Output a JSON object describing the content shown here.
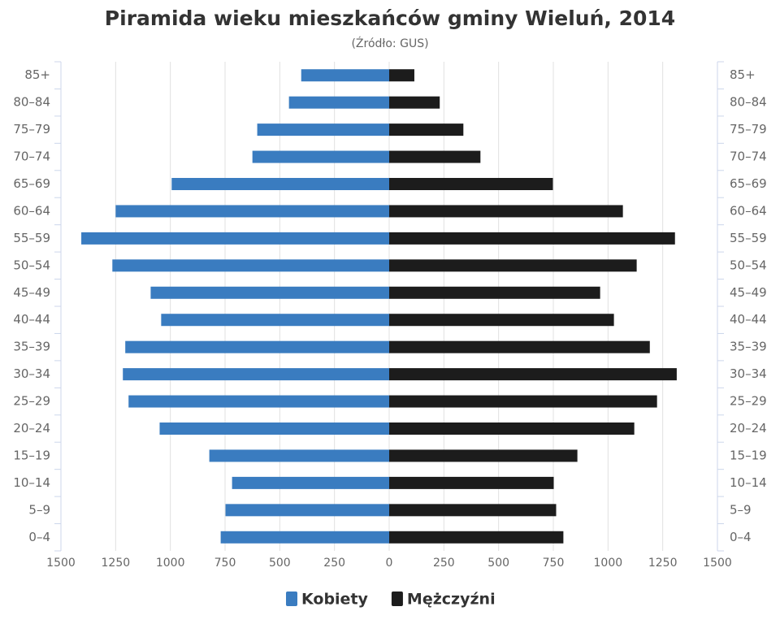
{
  "chart_data": {
    "type": "pyramid",
    "title": "Piramida wieku mieszkańców gminy Wieluń, 2014",
    "subtitle": "(Źródło: GUS)",
    "categories": [
      "0–4",
      "5–9",
      "10–14",
      "15–19",
      "20–24",
      "25–29",
      "30–34",
      "35–39",
      "40–44",
      "45–49",
      "50–54",
      "55–59",
      "60–64",
      "65–69",
      "70–74",
      "75–79",
      "80–84",
      "85+"
    ],
    "series": [
      {
        "name": "Kobiety",
        "color": "#3a7cc0",
        "values": [
          -770,
          -748,
          -718,
          -822,
          -1049,
          -1191,
          -1217,
          -1206,
          -1042,
          -1090,
          -1265,
          -1407,
          -1250,
          -994,
          -625,
          -603,
          -458,
          -402
        ]
      },
      {
        "name": "Mężczyźni",
        "color": "#1c1c1c",
        "values": [
          796,
          763,
          752,
          860,
          1120,
          1224,
          1314,
          1191,
          1027,
          964,
          1131,
          1306,
          1068,
          748,
          417,
          339,
          231,
          115
        ]
      }
    ],
    "xlim": [
      -1500,
      1500
    ],
    "xticks": [
      {
        "value": -1500,
        "label": "1500"
      },
      {
        "value": -1250,
        "label": "1250"
      },
      {
        "value": -1000,
        "label": "1000"
      },
      {
        "value": -750,
        "label": "750"
      },
      {
        "value": -500,
        "label": "500"
      },
      {
        "value": -250,
        "label": "250"
      },
      0,
      250,
      500,
      750,
      1000,
      1250,
      1500
    ],
    "grid": true
  }
}
